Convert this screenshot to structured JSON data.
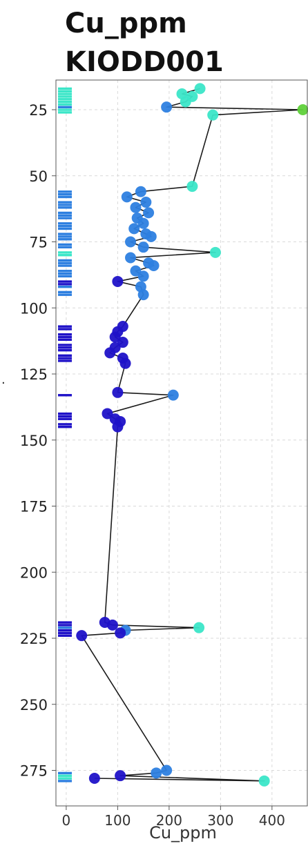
{
  "title_line1": "Cu_ppm",
  "title_line2": "KIODD001",
  "side_mark": ".",
  "colors": {
    "grid": "#d9d9d9",
    "line": "#1a1a1a",
    "axis": "#555555",
    "low": "#1f12c8",
    "mid": "#2d7fe0",
    "high": "#3be6c8",
    "max": "#5fd13a"
  },
  "chart_data": {
    "type": "scatter",
    "title": "Cu_ppm KIODD001",
    "xlabel": "Cu_ppm",
    "ylabel": "",
    "xlim": [
      -20,
      470
    ],
    "ylim": [
      280,
      16
    ],
    "y_inverted": true,
    "grid": true,
    "x_ticks": [
      0,
      100,
      200,
      300,
      400
    ],
    "y_ticks": [
      25,
      50,
      75,
      100,
      125,
      150,
      175,
      200,
      225,
      250,
      275
    ],
    "points": [
      {
        "x": 260,
        "y": 17,
        "c": "high"
      },
      {
        "x": 225,
        "y": 19,
        "c": "high"
      },
      {
        "x": 245,
        "y": 20,
        "c": "high"
      },
      {
        "x": 232,
        "y": 22,
        "c": "high"
      },
      {
        "x": 195,
        "y": 24,
        "c": "mid"
      },
      {
        "x": 460,
        "y": 25,
        "c": "max"
      },
      {
        "x": 285,
        "y": 27,
        "c": "high"
      },
      {
        "x": 245,
        "y": 54,
        "c": "high"
      },
      {
        "x": 145,
        "y": 56,
        "c": "mid"
      },
      {
        "x": 118,
        "y": 58,
        "c": "mid"
      },
      {
        "x": 155,
        "y": 60,
        "c": "mid"
      },
      {
        "x": 135,
        "y": 62,
        "c": "mid"
      },
      {
        "x": 160,
        "y": 64,
        "c": "mid"
      },
      {
        "x": 138,
        "y": 66,
        "c": "mid"
      },
      {
        "x": 150,
        "y": 68,
        "c": "mid"
      },
      {
        "x": 132,
        "y": 70,
        "c": "mid"
      },
      {
        "x": 155,
        "y": 72,
        "c": "mid"
      },
      {
        "x": 165,
        "y": 73,
        "c": "mid"
      },
      {
        "x": 125,
        "y": 75,
        "c": "mid"
      },
      {
        "x": 150,
        "y": 77,
        "c": "mid"
      },
      {
        "x": 290,
        "y": 79,
        "c": "high"
      },
      {
        "x": 125,
        "y": 81,
        "c": "mid"
      },
      {
        "x": 160,
        "y": 83,
        "c": "mid"
      },
      {
        "x": 170,
        "y": 84,
        "c": "mid"
      },
      {
        "x": 135,
        "y": 86,
        "c": "mid"
      },
      {
        "x": 150,
        "y": 88,
        "c": "mid"
      },
      {
        "x": 100,
        "y": 90,
        "c": "low"
      },
      {
        "x": 145,
        "y": 92,
        "c": "mid"
      },
      {
        "x": 150,
        "y": 95,
        "c": "mid"
      },
      {
        "x": 110,
        "y": 107,
        "c": "low"
      },
      {
        "x": 100,
        "y": 109,
        "c": "low"
      },
      {
        "x": 95,
        "y": 111,
        "c": "low"
      },
      {
        "x": 110,
        "y": 113,
        "c": "low"
      },
      {
        "x": 95,
        "y": 115,
        "c": "low"
      },
      {
        "x": 85,
        "y": 117,
        "c": "low"
      },
      {
        "x": 110,
        "y": 119,
        "c": "low"
      },
      {
        "x": 115,
        "y": 121,
        "c": "low"
      },
      {
        "x": 100,
        "y": 132,
        "c": "low"
      },
      {
        "x": 208,
        "y": 133,
        "c": "mid"
      },
      {
        "x": 80,
        "y": 140,
        "c": "low"
      },
      {
        "x": 95,
        "y": 142,
        "c": "low"
      },
      {
        "x": 105,
        "y": 143,
        "c": "low"
      },
      {
        "x": 100,
        "y": 145,
        "c": "low"
      },
      {
        "x": 75,
        "y": 219,
        "c": "low"
      },
      {
        "x": 90,
        "y": 220,
        "c": "low"
      },
      {
        "x": 258,
        "y": 221,
        "c": "high"
      },
      {
        "x": 115,
        "y": 222,
        "c": "mid"
      },
      {
        "x": 105,
        "y": 223,
        "c": "low"
      },
      {
        "x": 30,
        "y": 224,
        "c": "low"
      },
      {
        "x": 195,
        "y": 275,
        "c": "mid"
      },
      {
        "x": 175,
        "y": 276,
        "c": "mid"
      },
      {
        "x": 105,
        "y": 277,
        "c": "low"
      },
      {
        "x": 385,
        "y": 279,
        "c": "high"
      },
      {
        "x": 55,
        "y": 278,
        "c": "low"
      }
    ],
    "strip_markers": [
      {
        "y": 17,
        "c": "high"
      },
      {
        "y": 18,
        "c": "high"
      },
      {
        "y": 19,
        "c": "high"
      },
      {
        "y": 20,
        "c": "high"
      },
      {
        "y": 21,
        "c": "high"
      },
      {
        "y": 22,
        "c": "high"
      },
      {
        "y": 23,
        "c": "high"
      },
      {
        "y": 24,
        "c": "mid"
      },
      {
        "y": 25,
        "c": "high"
      },
      {
        "y": 26,
        "c": "high"
      },
      {
        "y": 56,
        "c": "mid"
      },
      {
        "y": 57,
        "c": "mid"
      },
      {
        "y": 58,
        "c": "mid"
      },
      {
        "y": 60,
        "c": "mid"
      },
      {
        "y": 61,
        "c": "mid"
      },
      {
        "y": 62,
        "c": "mid"
      },
      {
        "y": 64,
        "c": "mid"
      },
      {
        "y": 65,
        "c": "mid"
      },
      {
        "y": 66,
        "c": "mid"
      },
      {
        "y": 68,
        "c": "mid"
      },
      {
        "y": 69,
        "c": "mid"
      },
      {
        "y": 70,
        "c": "mid"
      },
      {
        "y": 72,
        "c": "mid"
      },
      {
        "y": 73,
        "c": "mid"
      },
      {
        "y": 74,
        "c": "mid"
      },
      {
        "y": 76,
        "c": "mid"
      },
      {
        "y": 77,
        "c": "mid"
      },
      {
        "y": 79,
        "c": "high"
      },
      {
        "y": 80,
        "c": "high"
      },
      {
        "y": 82,
        "c": "mid"
      },
      {
        "y": 83,
        "c": "mid"
      },
      {
        "y": 84,
        "c": "mid"
      },
      {
        "y": 86,
        "c": "mid"
      },
      {
        "y": 87,
        "c": "mid"
      },
      {
        "y": 88,
        "c": "mid"
      },
      {
        "y": 90,
        "c": "low"
      },
      {
        "y": 91,
        "c": "low"
      },
      {
        "y": 92,
        "c": "mid"
      },
      {
        "y": 94,
        "c": "mid"
      },
      {
        "y": 95,
        "c": "mid"
      },
      {
        "y": 107,
        "c": "low"
      },
      {
        "y": 108,
        "c": "low"
      },
      {
        "y": 110,
        "c": "low"
      },
      {
        "y": 111,
        "c": "low"
      },
      {
        "y": 112,
        "c": "low"
      },
      {
        "y": 114,
        "c": "low"
      },
      {
        "y": 115,
        "c": "low"
      },
      {
        "y": 116,
        "c": "low"
      },
      {
        "y": 118,
        "c": "low"
      },
      {
        "y": 119,
        "c": "low"
      },
      {
        "y": 120,
        "c": "low"
      },
      {
        "y": 133,
        "c": "low"
      },
      {
        "y": 140,
        "c": "low"
      },
      {
        "y": 141,
        "c": "low"
      },
      {
        "y": 142,
        "c": "low"
      },
      {
        "y": 144,
        "c": "low"
      },
      {
        "y": 145,
        "c": "low"
      },
      {
        "y": 219,
        "c": "low"
      },
      {
        "y": 220,
        "c": "low"
      },
      {
        "y": 221,
        "c": "mid"
      },
      {
        "y": 222,
        "c": "low"
      },
      {
        "y": 223,
        "c": "low"
      },
      {
        "y": 224,
        "c": "low"
      },
      {
        "y": 276,
        "c": "mid"
      },
      {
        "y": 277,
        "c": "high"
      },
      {
        "y": 278,
        "c": "high"
      },
      {
        "y": 279,
        "c": "mid"
      }
    ]
  }
}
